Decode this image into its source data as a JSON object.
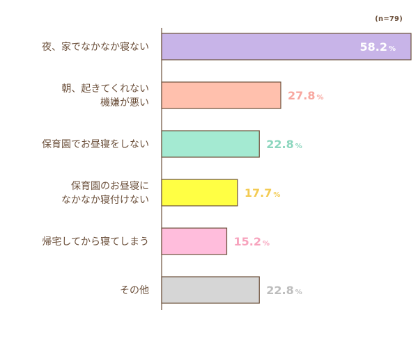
{
  "chart_data": {
    "type": "bar",
    "orientation": "horizontal",
    "sample_note": "(n=79)",
    "unit": "%",
    "categories": [
      [
        "夜、家でなかなか寝ない"
      ],
      [
        "朝、起きてくれない",
        "機嫌が悪い"
      ],
      [
        "保育園でお昼寝をしない"
      ],
      [
        "保育園のお昼寝に",
        "なかなか寝付けない"
      ],
      [
        "帰宅してから寝てしまう"
      ],
      [
        "その他"
      ]
    ],
    "values": [
      58.2,
      27.8,
      22.8,
      17.7,
      15.2,
      22.8
    ],
    "value_labels": [
      "58.2",
      "27.8",
      "22.8",
      "17.7",
      "15.2",
      "22.8"
    ],
    "bar_colors": [
      "#c8b4e8",
      "#ffc0ad",
      "#a4ead2",
      "#ffff44",
      "#ffbddc",
      "#d6d6d6"
    ],
    "label_colors": [
      "#ffffff",
      "#f8a79f",
      "#8cd6be",
      "#f3cb53",
      "#f7a3bd",
      "#bdbdbd"
    ],
    "bar_outline": "#6b4f3a",
    "text_color": "#6b4f3a",
    "value_label_inside_first": true,
    "xlim": [
      0,
      58.2
    ],
    "grid": false,
    "legend": "none"
  }
}
